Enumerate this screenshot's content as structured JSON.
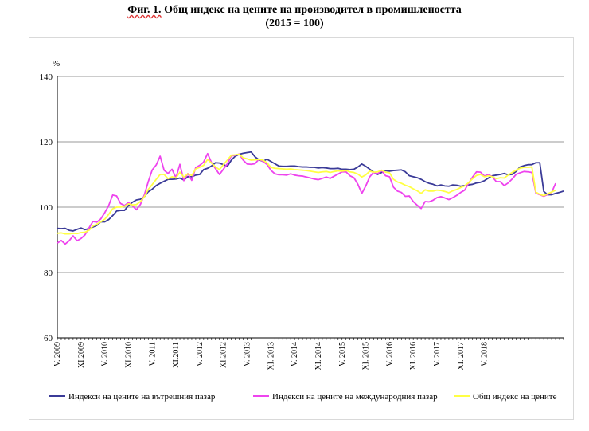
{
  "header": {
    "fig_label": "Фиг. 1.",
    "title_rest": " Общ индекс на цените на производител в промишлеността",
    "subtitle": "(2015 = 100)"
  },
  "chart_data": {
    "type": "line",
    "title": "Фиг. 1. Общ индекс на цените на производител в промишлеността",
    "subtitle": "(2015 = 100)",
    "ylabel": "%",
    "ylim": [
      60,
      140
    ],
    "yticks": [
      60,
      80,
      100,
      120,
      140
    ],
    "grid": "horizontal",
    "legend_position": "bottom",
    "x_start": "2009-05",
    "x_end": "2018-05",
    "x_tick_labels": [
      "V. 2009",
      "XI.2009",
      "V. 2010",
      "XI.2010",
      "V. 2011",
      "XI.2011",
      "V. 2012",
      "XI.2012",
      "V. 2013",
      "XI. 2013",
      "V. 2014",
      "XI. 2014",
      "V. 2015",
      "XI. 2015",
      "V. 2016",
      "XI. 2016",
      "V. 2017",
      "XI. 2017",
      "V. 2018"
    ],
    "series": [
      {
        "name": "Индекси на цените на вътрешния пазар",
        "color": "#3b3b98",
        "values": [
          93.5,
          93.4,
          93.5,
          92.9,
          92.7,
          93.2,
          93.6,
          93.1,
          93.4,
          93.9,
          94.4,
          95.5,
          95.5,
          96.2,
          97.4,
          98.8,
          99.0,
          99.0,
          100.5,
          101.5,
          102.2,
          102.4,
          103.2,
          104.7,
          105.5,
          106.6,
          107.3,
          107.9,
          108.5,
          108.5,
          108.6,
          108.9,
          108.3,
          109.3,
          109.3,
          109.8,
          110.0,
          111.5,
          111.9,
          112.6,
          113.6,
          113.5,
          113.0,
          112.5,
          114.4,
          115.6,
          116.2,
          116.5,
          116.7,
          116.9,
          115.4,
          114.5,
          114.0,
          114.7,
          114.0,
          113.3,
          112.6,
          112.5,
          112.5,
          112.6,
          112.6,
          112.4,
          112.3,
          112.3,
          112.2,
          112.2,
          112.0,
          112.1,
          112.0,
          111.8,
          111.8,
          111.9,
          111.6,
          111.6,
          111.5,
          111.6,
          112.3,
          113.2,
          112.5,
          111.6,
          110.7,
          110.0,
          110.6,
          111.2,
          111.0,
          111.2,
          111.3,
          111.4,
          110.8,
          109.6,
          109.3,
          109.0,
          108.5,
          107.8,
          107.3,
          107.0,
          106.5,
          106.8,
          106.5,
          106.4,
          106.8,
          106.7,
          106.4,
          106.6,
          106.8,
          107.0,
          107.4,
          107.6,
          108.1,
          108.9,
          109.6,
          109.8,
          110.0,
          110.3,
          109.9,
          110.0,
          110.9,
          112.3,
          112.7,
          113.0,
          113.0,
          113.6,
          113.6,
          104.8,
          103.8,
          103.8,
          104.2,
          104.5,
          104.9
        ]
      },
      {
        "name": "Индекси на цените на международния пазар",
        "color": "#ee44ee",
        "values": [
          89.0,
          89.8,
          88.7,
          89.7,
          91.2,
          89.7,
          90.4,
          91.5,
          93.6,
          95.6,
          95.4,
          96.4,
          98.3,
          100.5,
          103.7,
          103.4,
          101.1,
          100.5,
          101.4,
          100.4,
          99.2,
          100.8,
          103.7,
          107.8,
          111.4,
          112.9,
          115.6,
          111.3,
          110.3,
          111.6,
          109.0,
          113.1,
          108.1,
          110.3,
          108.2,
          112.1,
          112.8,
          113.8,
          116.4,
          113.6,
          111.8,
          110.0,
          111.6,
          113.3,
          115.7,
          115.9,
          116.3,
          114.4,
          113.2,
          113.1,
          113.3,
          114.7,
          114.0,
          113.1,
          111.3,
          110.2,
          109.9,
          109.9,
          109.8,
          110.2,
          109.8,
          109.6,
          109.5,
          109.2,
          108.9,
          108.6,
          108.4,
          108.8,
          109.2,
          108.8,
          109.5,
          110.1,
          110.8,
          110.8,
          109.6,
          109.0,
          107.0,
          104.2,
          106.5,
          109.3,
          110.7,
          110.2,
          111.2,
          109.6,
          109.3,
          106.1,
          104.9,
          104.5,
          103.3,
          103.4,
          101.7,
          100.6,
          99.6,
          101.7,
          101.6,
          102.1,
          102.9,
          103.2,
          102.8,
          102.3,
          102.9,
          103.6,
          104.5,
          105.2,
          107.3,
          109.2,
          110.8,
          110.7,
          109.5,
          110.0,
          109.3,
          107.8,
          107.8,
          106.6,
          107.4,
          108.6,
          110.0,
          110.5,
          110.9,
          110.8,
          110.6,
          104.3,
          103.8,
          103.3,
          103.9,
          104.5,
          107.3
        ]
      },
      {
        "name": "Общ индекс на цените",
        "color": "#ffff44",
        "values": [
          92.0,
          92.1,
          91.8,
          91.8,
          92.0,
          91.9,
          92.2,
          92.3,
          92.9,
          94.2,
          94.8,
          95.5,
          96.3,
          97.8,
          99.5,
          100.0,
          100.0,
          100.3,
          101.0,
          100.7,
          100.8,
          101.7,
          103.2,
          105.4,
          106.9,
          108.5,
          110.0,
          110.0,
          108.7,
          109.3,
          108.9,
          110.7,
          109.2,
          110.2,
          109.7,
          111.7,
          112.2,
          112.8,
          114.6,
          113.5,
          112.3,
          111.5,
          113.0,
          114.4,
          115.9,
          116.0,
          116.2,
          115.1,
          114.8,
          114.4,
          114.5,
          114.6,
          114.4,
          113.6,
          112.2,
          111.9,
          111.8,
          111.7,
          111.6,
          111.7,
          111.5,
          111.4,
          111.3,
          111.2,
          111.0,
          110.8,
          110.6,
          110.8,
          110.9,
          110.6,
          110.9,
          111.1,
          111.0,
          111.2,
          110.8,
          110.6,
          110.1,
          109.2,
          109.9,
          111.0,
          110.7,
          110.8,
          111.3,
          110.7,
          110.5,
          108.5,
          107.7,
          107.3,
          106.7,
          106.3,
          105.6,
          105.0,
          104.2,
          105.3,
          104.9,
          104.9,
          105.2,
          105.1,
          104.8,
          104.4,
          105.0,
          105.4,
          106.0,
          106.5,
          107.5,
          108.7,
          109.7,
          110.0,
          109.3,
          109.6,
          109.3,
          108.7,
          109.0,
          108.9,
          109.8,
          110.6,
          111.3,
          111.9,
          112.2,
          112.2,
          112.3,
          104.6,
          103.9,
          103.5,
          104.1,
          104.6,
          105.2
        ]
      }
    ]
  }
}
